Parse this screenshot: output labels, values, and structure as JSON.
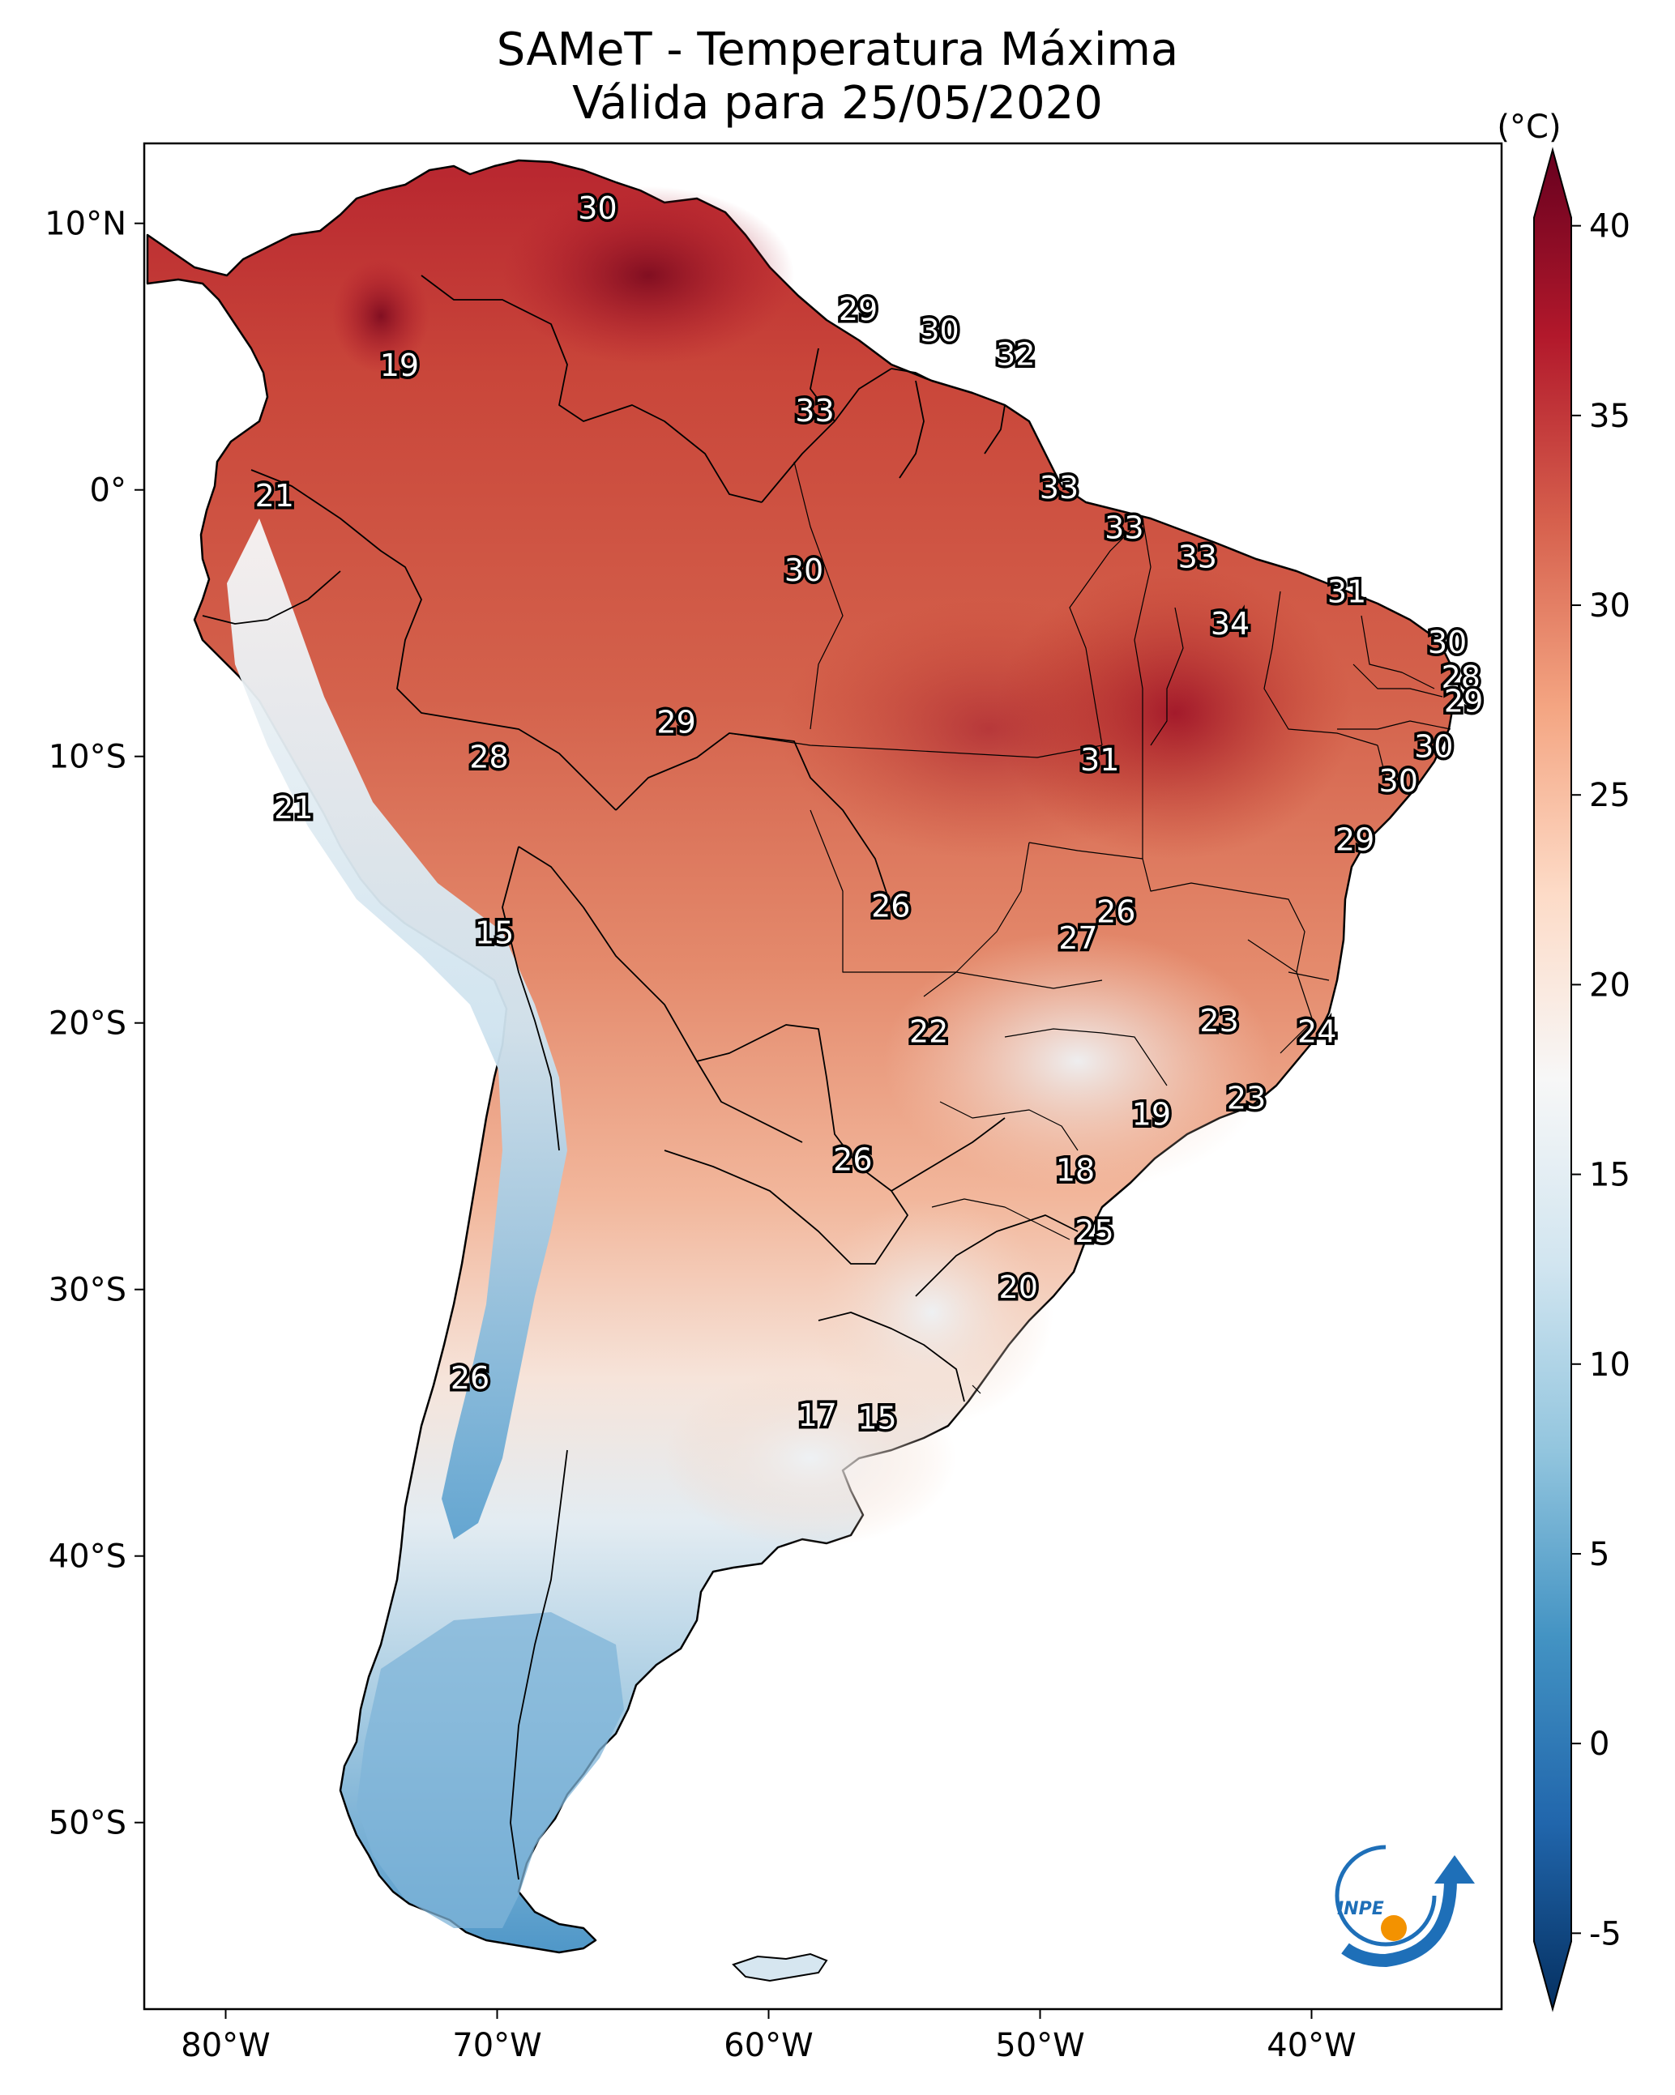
{
  "title": {
    "line1": "SAMeT - Temperatura Máxima",
    "line2": "Válida para 25/05/2020"
  },
  "colorbar": {
    "unit": "(°C)",
    "min": -7,
    "max": 42,
    "ticks": [
      "40",
      "35",
      "30",
      "25",
      "20",
      "15",
      "10",
      "5",
      "0",
      "-5"
    ],
    "tick_values": [
      40,
      35,
      30,
      25,
      20,
      15,
      10,
      5,
      0,
      -5
    ],
    "stops": [
      "#053061",
      "#2166ac",
      "#4393c3",
      "#92c5de",
      "#d1e5f0",
      "#f7f7f7",
      "#fddbc7",
      "#f4a582",
      "#d6604d",
      "#b2182b",
      "#67001f"
    ]
  },
  "axes": {
    "lon_labels": [
      "80°W",
      "70°W",
      "60°W",
      "50°W",
      "40°W"
    ],
    "lon_values": [
      -80,
      -70,
      -60,
      -50,
      -40
    ],
    "lat_labels": [
      "10°N",
      "0°",
      "10°S",
      "20°S",
      "30°S",
      "40°S",
      "50°S"
    ],
    "lat_values": [
      10,
      0,
      -10,
      -20,
      -30,
      -40,
      -50
    ],
    "lon_range": [
      -83,
      -33
    ],
    "lat_range": [
      -57,
      13
    ]
  },
  "temperature_labels": [
    {
      "v": "30",
      "lon": -66.3,
      "lat": 10.5
    },
    {
      "v": "29",
      "lon": -56.7,
      "lat": 6.7
    },
    {
      "v": "30",
      "lon": -53.7,
      "lat": 5.9
    },
    {
      "v": "32",
      "lon": -50.9,
      "lat": 5.0
    },
    {
      "v": "19",
      "lon": -73.6,
      "lat": 4.6
    },
    {
      "v": "33",
      "lon": -58.3,
      "lat": 2.9
    },
    {
      "v": "21",
      "lon": -78.2,
      "lat": -0.3
    },
    {
      "v": "33",
      "lon": -49.3,
      "lat": -0.0
    },
    {
      "v": "33",
      "lon": -46.9,
      "lat": -1.5
    },
    {
      "v": "33",
      "lon": -44.2,
      "lat": -2.6
    },
    {
      "v": "30",
      "lon": -58.7,
      "lat": -3.1
    },
    {
      "v": "31",
      "lon": -38.7,
      "lat": -3.9
    },
    {
      "v": "34",
      "lon": -43.0,
      "lat": -5.1
    },
    {
      "v": "30",
      "lon": -35.0,
      "lat": -5.8
    },
    {
      "v": "28",
      "lon": -34.5,
      "lat": -7.1
    },
    {
      "v": "29",
      "lon": -34.4,
      "lat": -8.0
    },
    {
      "v": "29",
      "lon": -63.4,
      "lat": -8.8
    },
    {
      "v": "30",
      "lon": -35.5,
      "lat": -9.7
    },
    {
      "v": "28",
      "lon": -70.3,
      "lat": -10.1
    },
    {
      "v": "31",
      "lon": -47.8,
      "lat": -10.2
    },
    {
      "v": "30",
      "lon": -36.8,
      "lat": -11.0
    },
    {
      "v": "21",
      "lon": -77.5,
      "lat": -12.0
    },
    {
      "v": "29",
      "lon": -38.4,
      "lat": -13.2
    },
    {
      "v": "26",
      "lon": -55.5,
      "lat": -15.7
    },
    {
      "v": "26",
      "lon": -47.2,
      "lat": -15.9
    },
    {
      "v": "15",
      "lon": -70.1,
      "lat": -16.7
    },
    {
      "v": "27",
      "lon": -48.6,
      "lat": -16.9
    },
    {
      "v": "23",
      "lon": -43.4,
      "lat": -20.0
    },
    {
      "v": "22",
      "lon": -54.1,
      "lat": -20.4
    },
    {
      "v": "24",
      "lon": -39.8,
      "lat": -20.4
    },
    {
      "v": "23",
      "lon": -42.4,
      "lat": -22.9
    },
    {
      "v": "19",
      "lon": -45.9,
      "lat": -23.5
    },
    {
      "v": "26",
      "lon": -56.9,
      "lat": -25.2
    },
    {
      "v": "18",
      "lon": -48.7,
      "lat": -25.6
    },
    {
      "v": "25",
      "lon": -48.0,
      "lat": -27.9
    },
    {
      "v": "20",
      "lon": -50.8,
      "lat": -30.0
    },
    {
      "v": "26",
      "lon": -71.0,
      "lat": -33.4
    },
    {
      "v": "17",
      "lon": -58.2,
      "lat": -34.8
    },
    {
      "v": "15",
      "lon": -56.0,
      "lat": -34.9
    }
  ],
  "logo": {
    "text": "INPE",
    "colors": [
      "#1e6fb8",
      "#f39200"
    ]
  }
}
